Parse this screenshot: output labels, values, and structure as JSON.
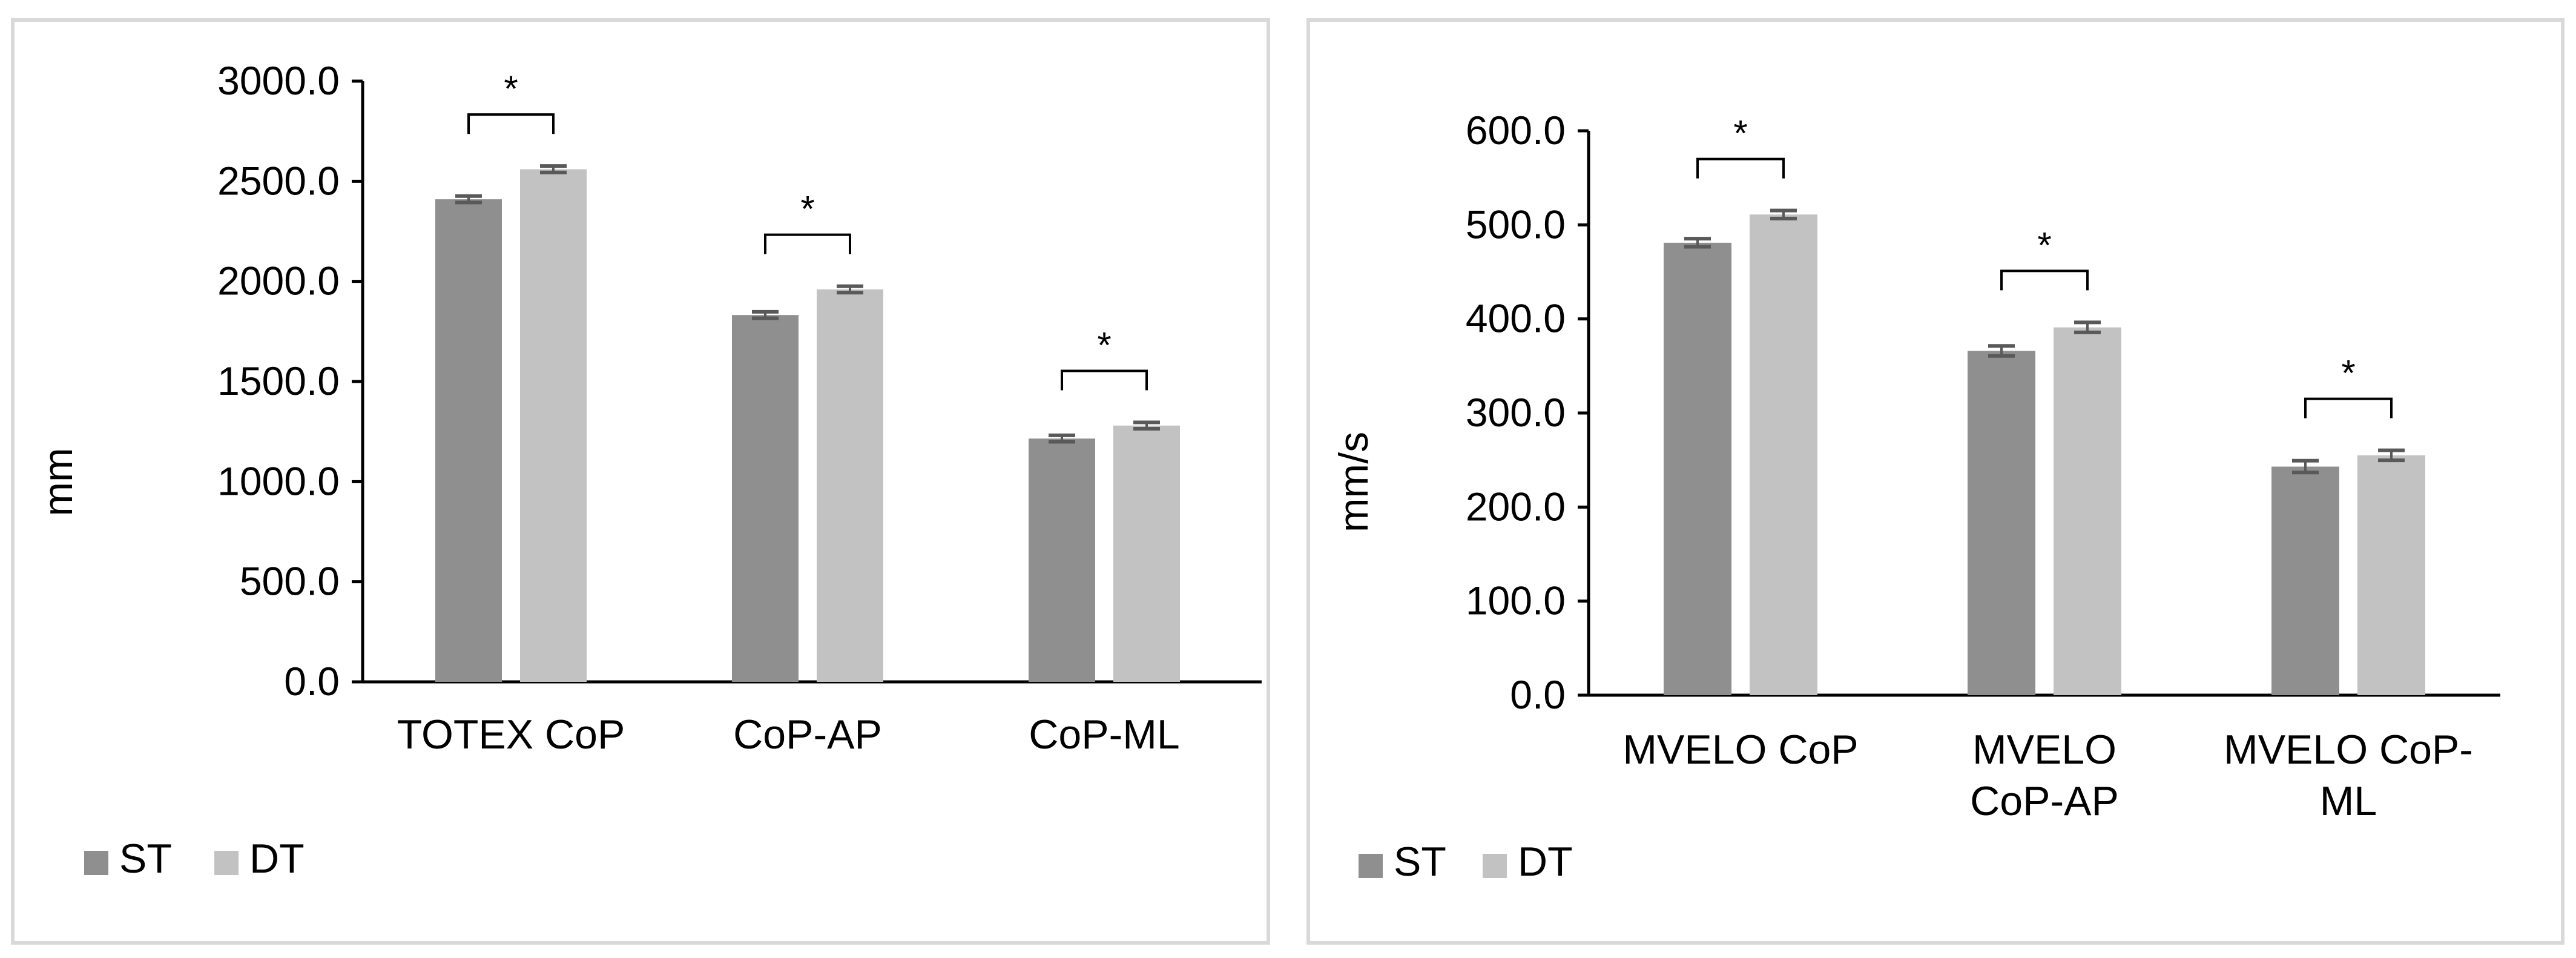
{
  "colors": {
    "st": "#8f8f8f",
    "dt": "#c2c2c2",
    "axis": "#000000",
    "border": "#d9d9d9",
    "error": "#595959"
  },
  "legend": {
    "st_label": "ST",
    "dt_label": "DT"
  },
  "chart_data": [
    {
      "type": "bar",
      "title": "",
      "xlabel": "",
      "ylabel": "mm",
      "ylim": [
        0,
        3000
      ],
      "yticks": [
        "0.0",
        "500.0",
        "1000.0",
        "1500.0",
        "2000.0",
        "2500.0",
        "3000.0"
      ],
      "categories": [
        [
          "TOTEX CoP"
        ],
        [
          "CoP-AP"
        ],
        [
          "CoP-ML"
        ]
      ],
      "series": [
        {
          "name": "ST",
          "values": [
            2410,
            1832,
            1215
          ],
          "errors": [
            10,
            10,
            10
          ]
        },
        {
          "name": "DT",
          "values": [
            2560,
            1960,
            1280
          ],
          "errors": [
            10,
            10,
            10
          ]
        }
      ],
      "significance": [
        "*",
        "*",
        "*"
      ],
      "legend_position": "bottom-left"
    },
    {
      "type": "bar",
      "title": "",
      "xlabel": "",
      "ylabel": "mm/s",
      "ylim": [
        0,
        600
      ],
      "yticks": [
        "0.0",
        "100.0",
        "200.0",
        "300.0",
        "400.0",
        "500.0",
        "600.0"
      ],
      "categories": [
        [
          "MVELO CoP"
        ],
        [
          "MVELO",
          "CoP-AP"
        ],
        [
          "MVELO CoP-",
          "ML"
        ]
      ],
      "series": [
        {
          "name": "ST",
          "values": [
            481,
            366,
            243
          ],
          "errors": [
            3,
            4,
            5
          ]
        },
        {
          "name": "DT",
          "values": [
            511,
            391,
            255
          ],
          "errors": [
            3,
            4,
            4
          ]
        }
      ],
      "significance": [
        "*",
        "*",
        "*"
      ],
      "legend_position": "bottom-left"
    }
  ]
}
